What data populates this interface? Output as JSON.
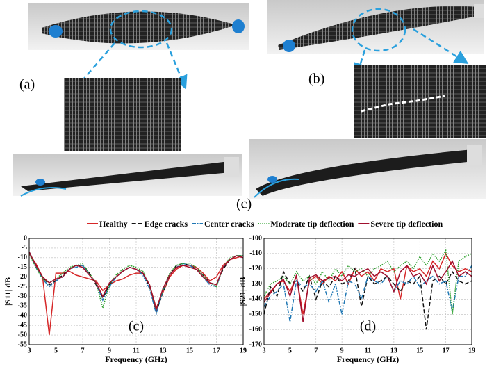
{
  "panel_labels": [
    "(a)",
    "(b)",
    "(c)"
  ],
  "chart_data": [
    {
      "type": "line",
      "panel_label": "(c)",
      "x_label": "Frequency (GHz)",
      "y_label": "|S11| dB",
      "xlim": [
        3,
        19
      ],
      "xticks": [
        3,
        5,
        7,
        9,
        11,
        13,
        15,
        17,
        19
      ],
      "ylim": [
        -55,
        0
      ],
      "yticks": [
        -55,
        -50,
        -45,
        -40,
        -35,
        -30,
        -25,
        -20,
        -15,
        -10,
        -5,
        0
      ],
      "grid": true,
      "x": [
        3,
        3.5,
        4,
        4.5,
        5,
        5.5,
        6,
        6.5,
        7,
        7.5,
        8,
        8.5,
        9,
        9.5,
        10,
        10.5,
        11,
        11.5,
        12,
        12.5,
        13,
        13.5,
        14,
        14.5,
        15,
        15.5,
        16,
        16.5,
        17,
        17.5,
        18,
        18.5,
        19
      ],
      "series": [
        {
          "name": "Healthy",
          "color": "#d62728",
          "line_style": "solid",
          "values": [
            -8,
            -13,
            -20,
            -50,
            -18,
            -18,
            -17,
            -19,
            -20,
            -21,
            -22,
            -27,
            -24,
            -22,
            -21,
            -19,
            -18,
            -18,
            -24,
            -36,
            -28,
            -20,
            -16,
            -14,
            -14,
            -15,
            -18,
            -22,
            -20,
            -14,
            -11,
            -10,
            -9
          ]
        },
        {
          "name": "Edge cracks",
          "color": "#111111",
          "line_style": "dashed",
          "values": [
            -7,
            -14,
            -20,
            -24,
            -22,
            -19,
            -16,
            -14,
            -14,
            -18,
            -24,
            -31,
            -24,
            -20,
            -17,
            -15,
            -16,
            -18,
            -25,
            -38,
            -28,
            -19,
            -14,
            -13,
            -14,
            -16,
            -19,
            -23,
            -24,
            -16,
            -11,
            -9,
            -9
          ]
        },
        {
          "name": "Center cracks",
          "color": "#1f77b4",
          "line_style": "dashdot",
          "values": [
            -7,
            -15,
            -21,
            -25,
            -22,
            -20,
            -16,
            -15,
            -14,
            -19,
            -23,
            -32,
            -25,
            -20,
            -17,
            -15,
            -16,
            -19,
            -26,
            -39,
            -27,
            -19,
            -15,
            -13,
            -14,
            -16,
            -20,
            -24,
            -25,
            -15,
            -11,
            -9,
            -9
          ]
        },
        {
          "name": "Moderate tip deflection",
          "color": "#2ca02c",
          "line_style": "dotted",
          "values": [
            -8,
            -15,
            -21,
            -23,
            -21,
            -18,
            -15,
            -14,
            -13,
            -18,
            -23,
            -36,
            -24,
            -19,
            -16,
            -14,
            -15,
            -17,
            -24,
            -37,
            -27,
            -18,
            -14,
            -13,
            -13,
            -15,
            -19,
            -23,
            -25,
            -15,
            -10,
            -9,
            -9
          ]
        },
        {
          "name": "Severe tip deflection",
          "color": "#a0102e",
          "line_style": "solid",
          "values": [
            -7,
            -14,
            -20,
            -23,
            -21,
            -20,
            -16,
            -14,
            -15,
            -19,
            -23,
            -30,
            -23,
            -20,
            -17,
            -15,
            -16,
            -18,
            -24,
            -37,
            -26,
            -19,
            -15,
            -14,
            -15,
            -16,
            -20,
            -23,
            -24,
            -15,
            -11,
            -9,
            -10
          ]
        }
      ]
    },
    {
      "type": "line",
      "panel_label": "(d)",
      "x_label": "Frequency (GHz)",
      "y_label": "|S21| dB",
      "xlim": [
        3,
        19
      ],
      "xticks": [
        3,
        5,
        7,
        9,
        11,
        13,
        15,
        17,
        19
      ],
      "ylim": [
        -170,
        -100
      ],
      "yticks": [
        -170,
        -160,
        -150,
        -140,
        -130,
        -120,
        -110,
        -100
      ],
      "grid": true,
      "x": [
        3,
        3.5,
        4,
        4.5,
        5,
        5.5,
        6,
        6.5,
        7,
        7.5,
        8,
        8.5,
        9,
        9.5,
        10,
        10.5,
        11,
        11.5,
        12,
        12.5,
        13,
        13.5,
        14,
        14.5,
        15,
        15.5,
        16,
        16.5,
        17,
        17.5,
        18,
        18.5,
        19
      ],
      "series": [
        {
          "values": [
            -140,
            -135,
            -130,
            -128,
            -135,
            -125,
            -150,
            -128,
            -125,
            -130,
            -125,
            -128,
            -122,
            -130,
            -120,
            -125,
            -122,
            -128,
            -120,
            -122,
            -120,
            -140,
            -118,
            -122,
            -120,
            -125,
            -115,
            -120,
            -110,
            -118,
            -122,
            -120,
            -122
          ]
        },
        {
          "values": [
            -150,
            -132,
            -138,
            -122,
            -130,
            -128,
            -135,
            -125,
            -140,
            -128,
            -132,
            -125,
            -130,
            -128,
            -120,
            -145,
            -125,
            -130,
            -128,
            -125,
            -130,
            -135,
            -128,
            -130,
            -125,
            -160,
            -128,
            -125,
            -130,
            -122,
            -128,
            -130,
            -128
          ]
        },
        {
          "values": [
            -145,
            -138,
            -135,
            -130,
            -155,
            -128,
            -132,
            -130,
            -135,
            -128,
            -142,
            -130,
            -150,
            -128,
            -130,
            -140,
            -125,
            -128,
            -130,
            -125,
            -135,
            -128,
            -130,
            -125,
            -132,
            -128,
            -125,
            -130,
            -128,
            -148,
            -125,
            -125,
            -118
          ]
        },
        {
          "values": [
            -138,
            -130,
            -128,
            -125,
            -130,
            -122,
            -128,
            -125,
            -130,
            -122,
            -128,
            -120,
            -125,
            -118,
            -122,
            -120,
            -125,
            -120,
            -118,
            -115,
            -122,
            -118,
            -115,
            -120,
            -112,
            -118,
            -110,
            -115,
            -108,
            -150,
            -115,
            -112,
            -110
          ]
        },
        {
          "values": [
            -142,
            -136,
            -130,
            -127,
            -138,
            -124,
            -155,
            -126,
            -124,
            -128,
            -126,
            -125,
            -128,
            -124,
            -125,
            -122,
            -120,
            -125,
            -122,
            -125,
            -135,
            -122,
            -118,
            -125,
            -123,
            -130,
            -118,
            -128,
            -122,
            -115,
            -125,
            -122,
            -125
          ]
        }
      ]
    }
  ]
}
